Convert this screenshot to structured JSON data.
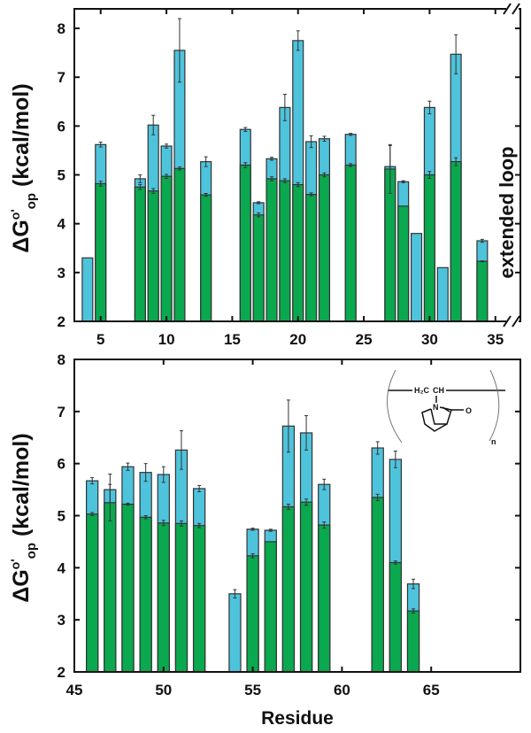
{
  "colors": {
    "unfolded": "#4ec3dc",
    "folded": "#0aa84f",
    "edge": "#333333"
  },
  "chart_data": [
    {
      "type": "bar",
      "panel": "top",
      "ylabel_main": "ΔG",
      "ylabel_sup": "o'",
      "ylabel_sub": "op",
      "ylabel_units": " (kcal/mol)",
      "xlabel": "",
      "annotation": "extended loop",
      "xlim": [
        3,
        36.9
      ],
      "ylim": [
        2,
        8.4
      ],
      "xticks": [
        5,
        10,
        15,
        20,
        25,
        30,
        35
      ],
      "yticks": [
        2,
        3,
        4,
        5,
        6,
        7,
        8
      ],
      "axis_break": "top-right and bottom-right",
      "series": [
        {
          "name": "light blue",
          "points": [
            {
              "x": 4,
              "y": 3.3
            },
            {
              "x": 5,
              "y": 5.62,
              "err": 0.05
            },
            {
              "x": 8,
              "y": 4.92,
              "err": 0.08
            },
            {
              "x": 9,
              "y": 6.02,
              "err": 0.2
            },
            {
              "x": 10,
              "y": 5.59,
              "err": 0.04
            },
            {
              "x": 11,
              "y": 7.55,
              "err": 0.65
            },
            {
              "x": 13,
              "y": 5.27,
              "err": 0.1
            },
            {
              "x": 16,
              "y": 5.93,
              "err": 0.04
            },
            {
              "x": 17,
              "y": 4.43,
              "err": 0.02
            },
            {
              "x": 18,
              "y": 5.33,
              "err": 0.03
            },
            {
              "x": 19,
              "y": 6.38,
              "err": 0.27
            },
            {
              "x": 20,
              "y": 7.75,
              "err": 0.2
            },
            {
              "x": 21,
              "y": 5.68,
              "err": 0.12
            },
            {
              "x": 22,
              "y": 5.74,
              "err": 0.05
            },
            {
              "x": 24,
              "y": 5.83,
              "err": 0.02
            },
            {
              "x": 27,
              "y": 5.17,
              "err": 0.43
            },
            {
              "x": 28,
              "y": 4.86,
              "err": 0.02
            },
            {
              "x": 29,
              "y": 3.8
            },
            {
              "x": 30,
              "y": 6.38,
              "err": 0.13
            },
            {
              "x": 31,
              "y": 3.1
            },
            {
              "x": 32,
              "y": 7.47,
              "err": 0.4
            },
            {
              "x": 34,
              "y": 3.65,
              "err": 0.03
            }
          ]
        },
        {
          "name": "green",
          "points": [
            {
              "x": 5,
              "y": 4.82,
              "err": 0.05
            },
            {
              "x": 8,
              "y": 4.75,
              "err": 0.05
            },
            {
              "x": 9,
              "y": 4.67,
              "err": 0.05
            },
            {
              "x": 10,
              "y": 4.97,
              "err": 0.04
            },
            {
              "x": 11,
              "y": 5.13,
              "err": 0.03
            },
            {
              "x": 13,
              "y": 4.59,
              "err": 0.03
            },
            {
              "x": 16,
              "y": 5.2,
              "err": 0.05
            },
            {
              "x": 17,
              "y": 4.18,
              "err": 0.04
            },
            {
              "x": 18,
              "y": 4.92,
              "err": 0.04
            },
            {
              "x": 19,
              "y": 4.88,
              "err": 0.04
            },
            {
              "x": 20,
              "y": 4.8,
              "err": 0.04
            },
            {
              "x": 21,
              "y": 4.6,
              "err": 0.03
            },
            {
              "x": 22,
              "y": 5.0,
              "err": 0.04
            },
            {
              "x": 24,
              "y": 5.2,
              "err": 0.03
            },
            {
              "x": 27,
              "y": 5.12,
              "err": 0.5
            },
            {
              "x": 28,
              "y": 4.36
            },
            {
              "x": 30,
              "y": 5.0,
              "err": 0.07
            },
            {
              "x": 32,
              "y": 5.27,
              "err": 0.08
            },
            {
              "x": 34,
              "y": 3.23,
              "err": 0.01
            }
          ]
        }
      ]
    },
    {
      "type": "bar",
      "panel": "bottom",
      "ylabel_main": "ΔG",
      "ylabel_sup": "o'",
      "ylabel_sub": "op",
      "ylabel_units": " (kcal/mol)",
      "xlabel": "Residue",
      "xlim": [
        45,
        70
      ],
      "ylim": [
        2,
        8
      ],
      "xticks": [
        45,
        50,
        55,
        60,
        65
      ],
      "yticks": [
        2,
        3,
        4,
        5,
        6,
        7,
        8
      ],
      "inset": {
        "group_left": "H₂C",
        "group_right": "CH",
        "n_atom": "N",
        "o_atom": "O",
        "repeat": "n"
      },
      "series": [
        {
          "name": "light blue",
          "points": [
            {
              "x": 46,
              "y": 5.67,
              "err": 0.06
            },
            {
              "x": 47,
              "y": 5.5,
              "err": 0.3
            },
            {
              "x": 48,
              "y": 5.94,
              "err": 0.07
            },
            {
              "x": 49,
              "y": 5.83,
              "err": 0.17
            },
            {
              "x": 50,
              "y": 5.79,
              "err": 0.15
            },
            {
              "x": 51,
              "y": 6.26,
              "err": 0.37
            },
            {
              "x": 52,
              "y": 5.52,
              "err": 0.06
            },
            {
              "x": 54,
              "y": 3.5,
              "err": 0.08
            },
            {
              "x": 55,
              "y": 4.74,
              "err": 0.02
            },
            {
              "x": 56,
              "y": 4.72,
              "err": 0.02
            },
            {
              "x": 57,
              "y": 6.72,
              "err": 0.5
            },
            {
              "x": 58,
              "y": 6.59,
              "err": 0.33
            },
            {
              "x": 59,
              "y": 5.6,
              "err": 0.1
            },
            {
              "x": 62,
              "y": 6.3,
              "err": 0.12
            },
            {
              "x": 63,
              "y": 6.08,
              "err": 0.16
            },
            {
              "x": 64,
              "y": 3.69,
              "err": 0.09
            }
          ]
        },
        {
          "name": "green",
          "points": [
            {
              "x": 46,
              "y": 5.03,
              "err": 0.03
            },
            {
              "x": 47,
              "y": 5.25,
              "err": 0.35
            },
            {
              "x": 48,
              "y": 5.22,
              "err": 0.02
            },
            {
              "x": 49,
              "y": 4.97,
              "err": 0.03
            },
            {
              "x": 50,
              "y": 4.86,
              "err": 0.05
            },
            {
              "x": 51,
              "y": 4.85,
              "err": 0.05
            },
            {
              "x": 52,
              "y": 4.81,
              "err": 0.04
            },
            {
              "x": 55,
              "y": 4.23,
              "err": 0.04
            },
            {
              "x": 56,
              "y": 4.5
            },
            {
              "x": 57,
              "y": 5.17,
              "err": 0.05
            },
            {
              "x": 58,
              "y": 5.26,
              "err": 0.06
            },
            {
              "x": 59,
              "y": 4.82,
              "err": 0.06
            },
            {
              "x": 62,
              "y": 5.35,
              "err": 0.06
            },
            {
              "x": 63,
              "y": 4.1,
              "err": 0.03
            },
            {
              "x": 64,
              "y": 3.17,
              "err": 0.04
            }
          ]
        }
      ]
    }
  ]
}
